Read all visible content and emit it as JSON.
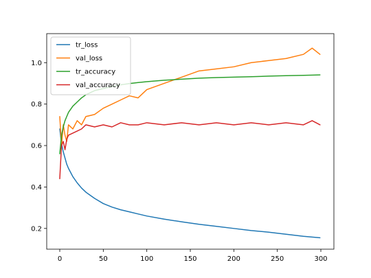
{
  "chart_data": {
    "type": "line",
    "title": "",
    "xlabel": "",
    "ylabel": "",
    "xlim": [
      -15,
      315
    ],
    "ylim": [
      0.1,
      1.14
    ],
    "xticks": [
      0,
      50,
      100,
      150,
      200,
      250,
      300
    ],
    "yticks": [
      0.2,
      0.4,
      0.6,
      0.8,
      1.0
    ],
    "xtick_labels": [
      "0",
      "50",
      "100",
      "150",
      "200",
      "250",
      "300"
    ],
    "ytick_labels": [
      "0.2",
      "0.4",
      "0.6",
      "0.8",
      "1.0"
    ],
    "grid": false,
    "legend_position": "top-left",
    "series": [
      {
        "name": "tr_loss",
        "color": "#1f77b4",
        "x": [
          0,
          2,
          4,
          6,
          8,
          10,
          15,
          20,
          25,
          30,
          40,
          50,
          60,
          70,
          80,
          90,
          100,
          120,
          140,
          160,
          180,
          200,
          220,
          240,
          260,
          280,
          299
        ],
        "y": [
          0.68,
          0.61,
          0.57,
          0.54,
          0.51,
          0.49,
          0.45,
          0.42,
          0.395,
          0.375,
          0.345,
          0.32,
          0.303,
          0.29,
          0.28,
          0.27,
          0.26,
          0.245,
          0.232,
          0.22,
          0.21,
          0.2,
          0.19,
          0.182,
          0.172,
          0.162,
          0.155
        ]
      },
      {
        "name": "val_loss",
        "color": "#ff7f0e",
        "x": [
          0,
          2,
          4,
          6,
          8,
          10,
          15,
          20,
          25,
          30,
          40,
          50,
          60,
          70,
          80,
          90,
          100,
          120,
          140,
          160,
          180,
          200,
          220,
          240,
          260,
          280,
          290,
          299
        ],
        "y": [
          0.74,
          0.6,
          0.7,
          0.65,
          0.62,
          0.7,
          0.68,
          0.72,
          0.7,
          0.74,
          0.75,
          0.78,
          0.8,
          0.82,
          0.84,
          0.83,
          0.87,
          0.9,
          0.93,
          0.96,
          0.97,
          0.98,
          1.0,
          1.01,
          1.02,
          1.04,
          1.07,
          1.04
        ]
      },
      {
        "name": "tr_accuracy",
        "color": "#2ca02c",
        "x": [
          0,
          2,
          4,
          6,
          8,
          10,
          15,
          20,
          25,
          30,
          40,
          50,
          60,
          70,
          80,
          90,
          100,
          120,
          140,
          160,
          180,
          200,
          220,
          240,
          260,
          280,
          299
        ],
        "y": [
          0.56,
          0.65,
          0.69,
          0.72,
          0.74,
          0.76,
          0.79,
          0.81,
          0.83,
          0.845,
          0.865,
          0.875,
          0.885,
          0.893,
          0.899,
          0.904,
          0.908,
          0.915,
          0.92,
          0.925,
          0.928,
          0.93,
          0.932,
          0.935,
          0.937,
          0.939,
          0.941
        ]
      },
      {
        "name": "val_accuracy",
        "color": "#d62728",
        "x": [
          0,
          2,
          4,
          6,
          8,
          10,
          15,
          20,
          25,
          30,
          40,
          50,
          60,
          70,
          80,
          90,
          100,
          120,
          140,
          160,
          180,
          200,
          220,
          240,
          260,
          280,
          290,
          299
        ],
        "y": [
          0.44,
          0.6,
          0.62,
          0.58,
          0.63,
          0.65,
          0.66,
          0.67,
          0.68,
          0.7,
          0.69,
          0.7,
          0.69,
          0.71,
          0.7,
          0.7,
          0.71,
          0.7,
          0.71,
          0.7,
          0.71,
          0.7,
          0.71,
          0.7,
          0.71,
          0.7,
          0.72,
          0.7
        ]
      }
    ]
  }
}
